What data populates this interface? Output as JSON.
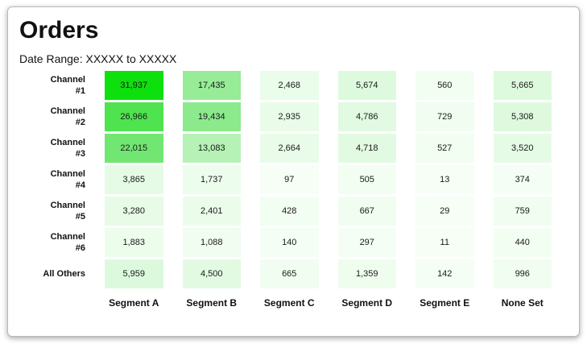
{
  "page": {
    "title": "Orders",
    "subtitle": "Date Range: XXXXX to XXXXX"
  },
  "chart_data": {
    "type": "heatmap",
    "title": "Orders",
    "rows": [
      "Channel #1",
      "Channel #2",
      "Channel #3",
      "Channel #4",
      "Channel #5",
      "Channel #6",
      "All Others"
    ],
    "columns": [
      "Segment A",
      "Segment B",
      "Segment C",
      "Segment D",
      "Segment E",
      "None Set"
    ],
    "values": [
      [
        "31,937",
        "17,435",
        "2,468",
        "5,674",
        "560",
        "5,665"
      ],
      [
        "26,966",
        "19,434",
        "2,935",
        "4,786",
        "729",
        "5,308"
      ],
      [
        "22,015",
        "13,083",
        "2,664",
        "4,718",
        "527",
        "3,520"
      ],
      [
        "3,865",
        "1,737",
        "97",
        "505",
        "13",
        "374"
      ],
      [
        "3,280",
        "2,401",
        "428",
        "667",
        "29",
        "759"
      ],
      [
        "1,883",
        "1,088",
        "140",
        "297",
        "11",
        "440"
      ],
      [
        "5,959",
        "4,500",
        "665",
        "1,359",
        "142",
        "996"
      ]
    ],
    "colors": [
      [
        "#0ee00e",
        "#97ec97",
        "#eafcea",
        "#defade",
        "#f2fef2",
        "#defade"
      ],
      [
        "#50e350",
        "#8cea8c",
        "#e9fce9",
        "#e1fae1",
        "#f1fdf1",
        "#dff9df"
      ],
      [
        "#72e672",
        "#b6f1b6",
        "#e9fce9",
        "#e2fae2",
        "#f2fef2",
        "#e6fbe6"
      ],
      [
        "#e5fbe5",
        "#edfded",
        "#f6fef6",
        "#f3fef3",
        "#f6fef6",
        "#f4fef4"
      ],
      [
        "#e7fbe7",
        "#ebfceb",
        "#f3fef3",
        "#f2fdf2",
        "#f6fef6",
        "#f1fdf1"
      ],
      [
        "#ecfdec",
        "#f0fdf0",
        "#f5fef5",
        "#f4fef4",
        "#f6fef6",
        "#f3fef3"
      ],
      [
        "#ddf9dd",
        "#e2fae2",
        "#f2fdf2",
        "#effdef",
        "#f5fef5",
        "#f0fdf0"
      ]
    ],
    "max_value": 31937,
    "min_value": 11,
    "color_scale": {
      "low": "#f6fef6",
      "high": "#0ee00e"
    }
  }
}
